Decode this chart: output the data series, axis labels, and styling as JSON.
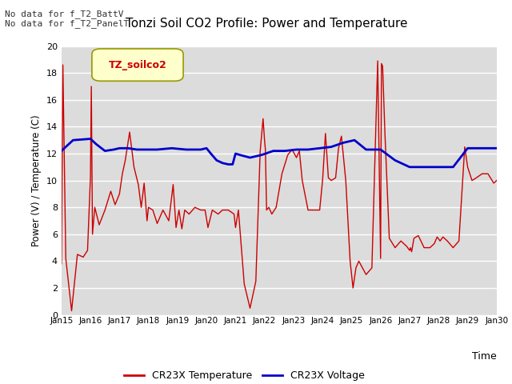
{
  "title": "Tonzi Soil CO2 Profile: Power and Temperature",
  "ylabel": "Power (V) / Temperature (C)",
  "xlabel": "Time",
  "top_left_text_line1": "No data for f_T2_BattV",
  "top_left_text_line2": "No data for f_T2_PanelT",
  "legend_box_text": "TZ_soilco2",
  "legend_entries": [
    "CR23X Temperature",
    "CR23X Voltage"
  ],
  "legend_colors": [
    "#cc0000",
    "#0000cc"
  ],
  "ylim": [
    0,
    20
  ],
  "xlim": [
    0,
    15
  ],
  "x_tick_labels": [
    "Jan 15",
    "Jan 16",
    "Jan 17",
    "Jan 18",
    "Jan 19",
    "Jan 20",
    "Jan 21",
    "Jan 22",
    "Jan 23",
    "Jan 24",
    "Jan 25",
    "Jan 26",
    "Jan 27",
    "Jan 28",
    "Jan 29",
    "Jan 30"
  ],
  "bg_color": "#dcdcdc",
  "red_data_x": [
    0.0,
    0.05,
    0.15,
    0.35,
    0.55,
    0.75,
    0.9,
    1.0,
    1.03,
    1.07,
    1.15,
    1.3,
    1.5,
    1.7,
    1.85,
    2.0,
    2.1,
    2.2,
    2.35,
    2.5,
    2.65,
    2.75,
    2.85,
    2.95,
    3.0,
    3.15,
    3.3,
    3.5,
    3.7,
    3.85,
    3.95,
    4.05,
    4.15,
    4.25,
    4.4,
    4.6,
    4.8,
    4.95,
    5.05,
    5.2,
    5.4,
    5.55,
    5.75,
    5.95,
    6.0,
    6.1,
    6.3,
    6.5,
    6.7,
    6.85,
    6.95,
    7.0,
    7.03,
    7.07,
    7.15,
    7.25,
    7.4,
    7.6,
    7.8,
    7.95,
    8.1,
    8.2,
    8.3,
    8.5,
    8.7,
    8.9,
    9.0,
    9.1,
    9.2,
    9.3,
    9.45,
    9.55,
    9.65,
    9.8,
    9.95,
    10.05,
    10.15,
    10.25,
    10.5,
    10.7,
    10.9,
    11.0,
    11.03,
    11.07,
    11.15,
    11.3,
    11.5,
    11.7,
    11.9,
    12.0,
    12.03,
    12.07,
    12.15,
    12.3,
    12.5,
    12.7,
    12.85,
    12.95,
    13.05,
    13.15,
    13.3,
    13.5,
    13.7,
    13.9,
    14.0,
    14.15,
    14.3,
    14.5,
    14.7,
    14.9,
    15.0
  ],
  "red_data_y": [
    3.8,
    18.6,
    4.2,
    0.3,
    4.5,
    4.3,
    4.8,
    10.3,
    17.0,
    6.0,
    8.0,
    6.7,
    7.8,
    9.2,
    8.2,
    9.0,
    10.5,
    11.5,
    13.6,
    11.0,
    9.7,
    8.0,
    9.8,
    7.0,
    8.0,
    7.8,
    6.8,
    7.8,
    7.0,
    9.7,
    6.5,
    7.8,
    6.4,
    7.8,
    7.5,
    8.0,
    7.8,
    7.8,
    6.5,
    7.8,
    7.5,
    7.8,
    7.8,
    7.5,
    6.5,
    7.8,
    2.3,
    0.5,
    2.5,
    12.2,
    14.6,
    13.0,
    12.3,
    7.8,
    8.0,
    7.5,
    8.0,
    10.5,
    11.9,
    12.3,
    11.7,
    12.2,
    10.0,
    7.8,
    7.8,
    7.8,
    10.0,
    13.5,
    10.2,
    10.0,
    10.2,
    12.4,
    13.3,
    10.0,
    4.0,
    2.0,
    3.5,
    4.0,
    3.0,
    3.5,
    18.9,
    4.2,
    18.7,
    18.5,
    13.5,
    5.7,
    5.0,
    5.5,
    5.1,
    4.8,
    5.0,
    4.7,
    5.7,
    5.9,
    5.0,
    5.0,
    5.3,
    5.8,
    5.5,
    5.8,
    5.5,
    5.0,
    5.5,
    12.5,
    11.0,
    10.0,
    10.2,
    10.5,
    10.5,
    9.8,
    10.0
  ],
  "blue_data_x": [
    0.0,
    0.4,
    1.0,
    1.2,
    1.5,
    1.8,
    2.0,
    2.3,
    2.6,
    2.9,
    3.3,
    3.8,
    4.3,
    4.8,
    5.0,
    5.15,
    5.35,
    5.55,
    5.75,
    5.9,
    6.0,
    6.15,
    6.5,
    6.9,
    7.3,
    7.7,
    8.1,
    8.5,
    8.9,
    9.3,
    9.7,
    10.1,
    10.5,
    10.8,
    11.0,
    11.5,
    12.0,
    12.5,
    13.0,
    13.5,
    14.0,
    14.5,
    15.0
  ],
  "blue_data_y": [
    12.2,
    13.0,
    13.1,
    12.7,
    12.2,
    12.3,
    12.4,
    12.4,
    12.3,
    12.3,
    12.3,
    12.4,
    12.3,
    12.3,
    12.4,
    12.0,
    11.5,
    11.3,
    11.2,
    11.2,
    12.0,
    11.9,
    11.7,
    11.9,
    12.2,
    12.2,
    12.3,
    12.3,
    12.4,
    12.5,
    12.8,
    13.0,
    12.3,
    12.3,
    12.3,
    11.5,
    11.0,
    11.0,
    11.0,
    11.0,
    12.4,
    12.4,
    12.4
  ]
}
